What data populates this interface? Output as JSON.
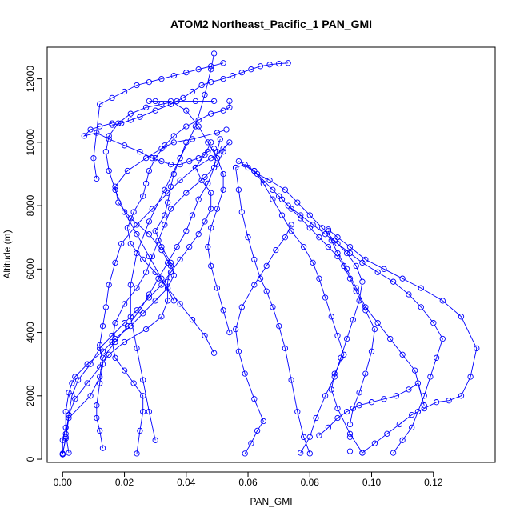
{
  "chart_data": {
    "type": "line",
    "title": "ATOM2 Northeast_Pacific_1 PAN_GMI",
    "xlabel": "PAN_GMI",
    "ylabel": "Altitude (m)",
    "xlim": [
      -0.005,
      0.14
    ],
    "ylim": [
      -100,
      13000
    ],
    "xticks": [
      0.0,
      0.02,
      0.04,
      0.06,
      0.08,
      0.1,
      0.12
    ],
    "xtick_labels": [
      "0.00",
      "0.02",
      "0.04",
      "0.06",
      "0.08",
      "0.10",
      "0.12"
    ],
    "yticks": [
      0,
      2000,
      4000,
      6000,
      8000,
      10000,
      12000
    ],
    "ytick_labels": [
      "0",
      "2000",
      "4000",
      "6000",
      "8000",
      "10000",
      "12000"
    ],
    "color": "#0000ff",
    "marker": "open-circle",
    "grid": false,
    "series": [
      {
        "x": [
          0.0,
          0.0,
          0.001,
          0.001,
          0.002,
          0.003,
          0.004,
          0.008,
          0.013,
          0.017,
          0.022,
          0.026,
          0.03,
          0.034,
          0.036,
          0.035,
          0.032,
          0.03,
          0.033,
          0.034,
          0.035,
          0.036,
          0.038,
          0.04
        ],
        "y": [
          150,
          600,
          1000,
          1500,
          2100,
          2400,
          2600,
          3000,
          3400,
          3800,
          4200,
          4600,
          5000,
          5400,
          5800,
          6200,
          6700,
          7200,
          7700,
          8100,
          8600,
          9000,
          9500,
          10000
        ]
      },
      {
        "x": [
          0.0,
          0.001,
          0.002,
          0.003,
          0.005,
          0.009,
          0.012,
          0.016,
          0.02,
          0.024,
          0.028,
          0.032,
          0.035,
          0.038,
          0.041,
          0.044,
          0.046,
          0.048,
          0.048,
          0.045,
          0.043,
          0.046,
          0.048
        ],
        "y": [
          160,
          700,
          1400,
          2000,
          2500,
          3000,
          3500,
          3900,
          4300,
          4700,
          5100,
          5500,
          5900,
          6300,
          6700,
          7100,
          7500,
          7900,
          8400,
          8800,
          9200,
          9600,
          10000
        ]
      },
      {
        "x": [
          0.002,
          0.001,
          0.002,
          0.004,
          0.008,
          0.012,
          0.015,
          0.02,
          0.027,
          0.032,
          0.034,
          0.034,
          0.035,
          0.032,
          0.028,
          0.022,
          0.018,
          0.017,
          0.021,
          0.027,
          0.032,
          0.036,
          0.042,
          0.05,
          0.053
        ],
        "y": [
          200,
          800,
          1400,
          1900,
          2400,
          2900,
          3300,
          3700,
          4100,
          4500,
          5000,
          5600,
          6100,
          6600,
          7100,
          7600,
          8100,
          8600,
          9100,
          9500,
          9800,
          10000,
          10100,
          10300,
          10400
        ]
      },
      {
        "x": [
          0.0,
          0.001,
          0.002,
          0.009,
          0.012,
          0.013,
          0.017,
          0.021,
          0.025,
          0.028,
          0.031,
          0.034,
          0.037,
          0.04,
          0.042,
          0.044,
          0.047,
          0.049,
          0.05,
          0.051
        ],
        "y": [
          180,
          650,
          1300,
          2000,
          2600,
          3200,
          3700,
          4200,
          4700,
          5200,
          5700,
          6200,
          6700,
          7200,
          7700,
          8200,
          8700,
          9200,
          9700,
          10100
        ]
      },
      {
        "x": [
          0.024,
          0.025,
          0.026,
          0.026,
          0.023,
          0.02,
          0.017,
          0.016,
          0.017,
          0.02,
          0.024,
          0.027,
          0.029,
          0.031,
          0.033,
          0.035,
          0.04,
          0.046,
          0.05,
          0.052
        ],
        "y": [
          180,
          900,
          1500,
          2000,
          2400,
          2800,
          3200,
          3700,
          4300,
          4900,
          5400,
          5900,
          6400,
          6900,
          7400,
          7900,
          8400,
          8900,
          9300,
          9700
        ]
      },
      {
        "x": [
          0.013,
          0.012,
          0.011,
          0.011,
          0.012,
          0.013,
          0.012,
          0.013,
          0.014,
          0.015,
          0.017,
          0.019,
          0.024,
          0.029,
          0.034,
          0.038,
          0.043,
          0.048,
          0.052,
          0.054
        ],
        "y": [
          350,
          900,
          1300,
          1700,
          2400,
          3000,
          3600,
          4200,
          4800,
          5500,
          6200,
          6800,
          7400,
          7900,
          8400,
          8800,
          9200,
          9500,
          9800,
          10000
        ]
      },
      {
        "x": [
          0.049,
          0.046,
          0.042,
          0.038,
          0.034,
          0.03,
          0.026,
          0.022,
          0.021,
          0.023,
          0.026,
          0.027,
          0.028,
          0.03,
          0.033,
          0.036,
          0.04,
          0.044,
          0.048,
          0.052,
          0.054,
          0.054
        ],
        "y": [
          3350,
          3900,
          4400,
          4900,
          5400,
          5900,
          6300,
          6800,
          7300,
          7800,
          8300,
          8700,
          9100,
          9500,
          9900,
          10200,
          10500,
          10700,
          10900,
          11000,
          11100,
          11300
        ]
      },
      {
        "x": [
          0.054,
          0.052,
          0.05,
          0.048,
          0.047,
          0.048,
          0.05,
          0.052,
          0.052,
          0.05,
          0.047,
          0.044,
          0.04,
          0.035,
          0.03,
          0.028
        ],
        "y": [
          4000,
          4700,
          5400,
          6100,
          6700,
          7300,
          7900,
          8500,
          9000,
          9500,
          10000,
          10500,
          11000,
          11300,
          11300,
          11300
        ]
      },
      {
        "x": [
          0.03,
          0.028,
          0.026,
          0.024,
          0.022,
          0.022,
          0.024,
          0.028,
          0.033,
          0.038,
          0.043,
          0.046,
          0.048,
          0.049
        ],
        "y": [
          600,
          1500,
          2500,
          3500,
          4500,
          5500,
          6500,
          7500,
          8500,
          9500,
          10500,
          11500,
          12300,
          12800
        ]
      },
      {
        "x": [
          0.036,
          0.032,
          0.028,
          0.024,
          0.02,
          0.017,
          0.015,
          0.014,
          0.015,
          0.018,
          0.022,
          0.027,
          0.032,
          0.037,
          0.043,
          0.049
        ],
        "y": [
          5000,
          5700,
          6400,
          7100,
          7800,
          8500,
          9100,
          9700,
          10200,
          10600,
          10900,
          11100,
          11200,
          11300,
          11300,
          11300
        ]
      },
      {
        "x": [
          0.049,
          0.047,
          0.044,
          0.041,
          0.038,
          0.035,
          0.032,
          0.029,
          0.025,
          0.02,
          0.015,
          0.011,
          0.007,
          0.009,
          0.012,
          0.016
        ],
        "y": [
          9800,
          9700,
          9500,
          9400,
          9300,
          9300,
          9400,
          9500,
          9700,
          9900,
          10100,
          10300,
          10200,
          10400,
          10500,
          10600
        ]
      },
      {
        "x": [
          0.016,
          0.019,
          0.022,
          0.025,
          0.03,
          0.035,
          0.039,
          0.042,
          0.045,
          0.048,
          0.052,
          0.055,
          0.058,
          0.061,
          0.064,
          0.067,
          0.07,
          0.073
        ],
        "y": [
          10550,
          10600,
          10700,
          10800,
          11000,
          11200,
          11400,
          11600,
          11800,
          11900,
          12000,
          12100,
          12200,
          12300,
          12400,
          12450,
          12480,
          12500
        ]
      },
      {
        "x": [
          0.052,
          0.048,
          0.044,
          0.04,
          0.036,
          0.032,
          0.028,
          0.024,
          0.02,
          0.016,
          0.012,
          0.01,
          0.011
        ],
        "y": [
          12500,
          12400,
          12300,
          12200,
          12100,
          12000,
          11900,
          11800,
          11600,
          11400,
          11200,
          9500,
          8850
        ]
      },
      {
        "x": [
          0.059,
          0.061,
          0.063,
          0.065,
          0.062,
          0.059,
          0.057,
          0.056,
          0.058,
          0.062,
          0.066,
          0.069,
          0.072,
          0.074
        ],
        "y": [
          180,
          500,
          900,
          1200,
          1900,
          2700,
          3400,
          4100,
          4800,
          5500,
          6100,
          6600,
          7000,
          7400
        ]
      },
      {
        "x": [
          0.097,
          0.093,
          0.089,
          0.087,
          0.088,
          0.091,
          0.089,
          0.087,
          0.085,
          0.083,
          0.081,
          0.078,
          0.074,
          0.071,
          0.068,
          0.065,
          0.062,
          0.059,
          0.056
        ],
        "y": [
          200,
          800,
          1600,
          2200,
          2700,
          3300,
          3900,
          4500,
          5100,
          5700,
          6200,
          6700,
          7200,
          7700,
          8200,
          8700,
          9100,
          9300,
          9200
        ]
      },
      {
        "x": [
          0.077,
          0.08,
          0.082,
          0.085,
          0.088,
          0.09,
          0.092,
          0.094,
          0.096,
          0.097,
          0.095,
          0.092,
          0.088,
          0.084,
          0.08,
          0.076,
          0.072,
          0.067,
          0.063,
          0.06,
          0.057
        ],
        "y": [
          200,
          700,
          1300,
          2000,
          2600,
          3200,
          3800,
          4400,
          5000,
          5600,
          6100,
          6500,
          6900,
          7300,
          7700,
          8100,
          8500,
          8800,
          9000,
          9200,
          9400
        ]
      },
      {
        "x": [
          0.093,
          0.093,
          0.093,
          0.094,
          0.096,
          0.098,
          0.1,
          0.101,
          0.098,
          0.095,
          0.093,
          0.091,
          0.089,
          0.086,
          0.083,
          0.08,
          0.077,
          0.074,
          0.071,
          0.068,
          0.065,
          0.062
        ],
        "y": [
          250,
          700,
          1100,
          1600,
          2100,
          2700,
          3400,
          4100,
          4700,
          5300,
          5700,
          6100,
          6400,
          6700,
          7000,
          7300,
          7600,
          7900,
          8200,
          8500,
          8800,
          9100
        ]
      },
      {
        "x": [
          0.107,
          0.11,
          0.113,
          0.115,
          0.117,
          0.119,
          0.121,
          0.123,
          0.12,
          0.116,
          0.112,
          0.107,
          0.102,
          0.097,
          0.093,
          0.089,
          0.085,
          0.081,
          0.077,
          0.073,
          0.07
        ],
        "y": [
          200,
          600,
          1000,
          1500,
          2000,
          2600,
          3200,
          3800,
          4300,
          4800,
          5200,
          5600,
          5900,
          6200,
          6500,
          6800,
          7100,
          7400,
          7700,
          8000,
          8300
        ]
      },
      {
        "x": [
          0.097,
          0.101,
          0.105,
          0.109,
          0.113,
          0.117,
          0.121,
          0.125,
          0.129,
          0.132,
          0.134,
          0.129,
          0.123,
          0.116,
          0.11,
          0.104,
          0.098,
          0.093,
          0.089,
          0.086
        ],
        "y": [
          200,
          500,
          800,
          1100,
          1400,
          1600,
          1800,
          1850,
          2000,
          2600,
          3500,
          4500,
          5000,
          5400,
          5700,
          6000,
          6300,
          6700,
          7000,
          7250
        ]
      },
      {
        "x": [
          0.083,
          0.086,
          0.089,
          0.092,
          0.096,
          0.1,
          0.104,
          0.108,
          0.112,
          0.115,
          0.117,
          0.114,
          0.11,
          0.106,
          0.102,
          0.098,
          0.095,
          0.092,
          0.089,
          0.087,
          0.086
        ],
        "y": [
          750,
          1000,
          1300,
          1500,
          1700,
          1800,
          1900,
          2000,
          2200,
          2400,
          1700,
          2800,
          3300,
          3800,
          4300,
          4800,
          5400,
          6000,
          6500,
          6900,
          7200
        ]
      },
      {
        "x": [
          0.08,
          0.078,
          0.076,
          0.074,
          0.072,
          0.07,
          0.068,
          0.066,
          0.064,
          0.062,
          0.06,
          0.058,
          0.057,
          0.056
        ],
        "y": [
          180,
          700,
          1500,
          2500,
          3500,
          4200,
          4800,
          5300,
          5700,
          6300,
          7000,
          7800,
          8500,
          9200
        ]
      }
    ]
  }
}
